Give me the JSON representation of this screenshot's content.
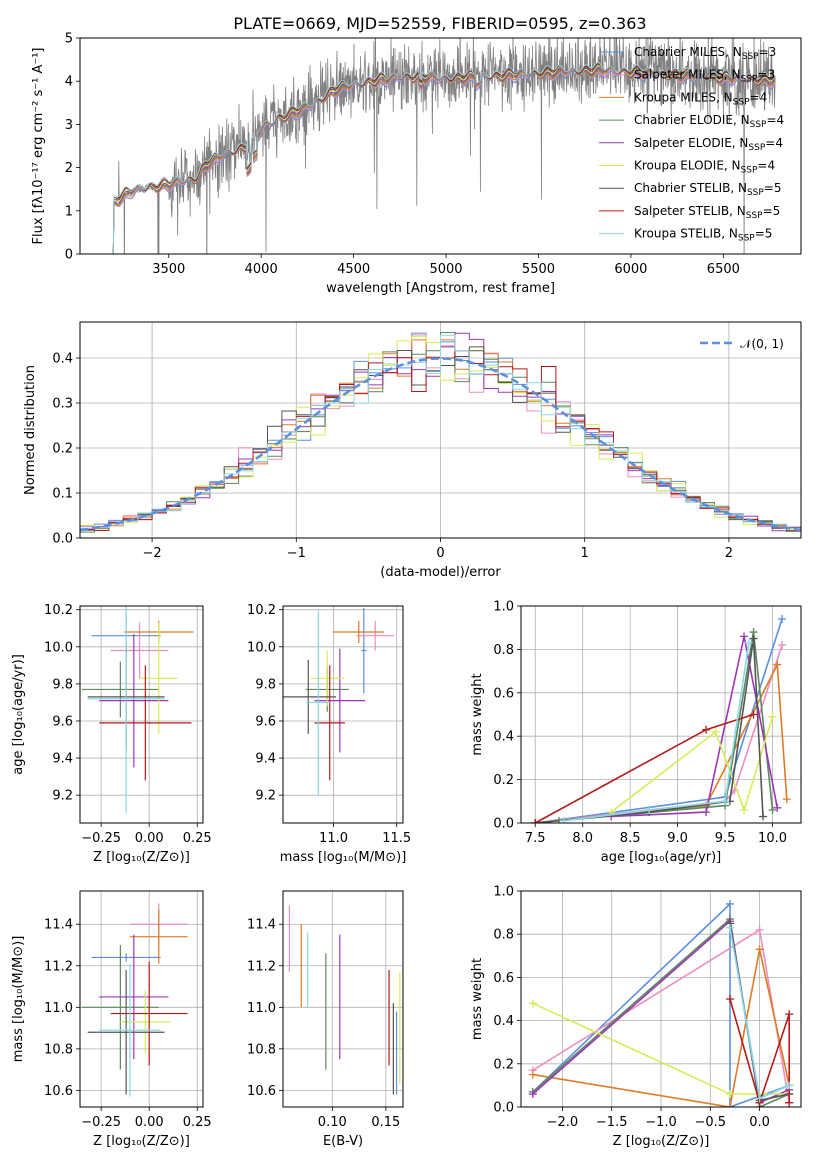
{
  "figure": {
    "title": "PLATE=0669, MJD=52559, FIBERID=0595, z=0.363"
  },
  "models": [
    {
      "name": "Chabrier MILES, N_SSP=3",
      "base": "Chabrier MILES, N",
      "sub": "SSP",
      "tail": "=3",
      "color": "#5B8FE0"
    },
    {
      "name": "Salpeter MILES, N_SSP=3",
      "base": "Salpeter MILES, N",
      "sub": "SSP",
      "tail": "=3",
      "color": "#EE8DC0"
    },
    {
      "name": "Kroupa MILES, N_SSP=4",
      "base": "Kroupa MILES, N",
      "sub": "SSP",
      "tail": "=4",
      "color": "#E07B26"
    },
    {
      "name": "Chabrier ELODIE, N_SSP=4",
      "base": "Chabrier ELODIE, N",
      "sub": "SSP",
      "tail": "=4",
      "color": "#5A8A5A"
    },
    {
      "name": "Salpeter ELODIE, N_SSP=4",
      "base": "Salpeter ELODIE, N",
      "sub": "SSP",
      "tail": "=4",
      "color": "#9B38B8"
    },
    {
      "name": "Kroupa ELODIE, N_SSP=4",
      "base": "Kroupa ELODIE, N",
      "sub": "SSP",
      "tail": "=4",
      "color": "#D8EB56"
    },
    {
      "name": "Chabrier STELIB, N_SSP=5",
      "base": "Chabrier STELIB, N",
      "sub": "SSP",
      "tail": "=5",
      "color": "#555555"
    },
    {
      "name": "Salpeter STELIB, N_SSP=5",
      "base": "Salpeter STELIB, N",
      "sub": "SSP",
      "tail": "=5",
      "color": "#B31B1B"
    },
    {
      "name": "Kroupa STELIB, N_SSP=5",
      "base": "Kroupa STELIB, N",
      "sub": "SSP",
      "tail": "=5",
      "color": "#8AD8E6"
    }
  ],
  "chart_data": [
    {
      "id": "spectrum",
      "type": "line",
      "xlabel": "wavelength [Angstrom, rest frame]",
      "ylabel": "Flux [fλ10⁻¹⁷ erg cm⁻² s⁻¹ A⁻¹]",
      "xlim": [
        3020,
        6920
      ],
      "ylim": [
        0,
        5
      ],
      "xticks": [
        3500,
        4000,
        4500,
        5000,
        5500,
        6000,
        6500
      ],
      "yticks": [
        0,
        1,
        2,
        3,
        4,
        5
      ],
      "data_color": "#808080",
      "x_range": [
        3200,
        6780
      ],
      "continuum": [
        [
          3200,
          1.2
        ],
        [
          3300,
          1.45
        ],
        [
          3400,
          1.55
        ],
        [
          3500,
          1.6
        ],
        [
          3650,
          1.75
        ],
        [
          3700,
          2.05
        ],
        [
          3800,
          2.3
        ],
        [
          3900,
          2.45
        ],
        [
          3950,
          2.5
        ],
        [
          4000,
          2.9
        ],
        [
          4100,
          3.15
        ],
        [
          4200,
          3.3
        ],
        [
          4300,
          3.5
        ],
        [
          4400,
          3.8
        ],
        [
          4500,
          3.9
        ],
        [
          4600,
          4.0
        ],
        [
          4800,
          4.1
        ],
        [
          5000,
          4.05
        ],
        [
          5200,
          4.1
        ],
        [
          5400,
          4.15
        ],
        [
          5600,
          4.2
        ],
        [
          5800,
          4.25
        ],
        [
          6000,
          4.2
        ],
        [
          6200,
          4.15
        ],
        [
          6400,
          4.1
        ],
        [
          6600,
          4.05
        ],
        [
          6780,
          4.0
        ]
      ]
    },
    {
      "id": "residuals",
      "type": "step",
      "xlabel": "(data-model)/error",
      "ylabel": "Normed distribution",
      "xlim": [
        -2.5,
        2.5
      ],
      "ylim": [
        0,
        0.48
      ],
      "xticks": [
        -2,
        -1,
        0,
        1,
        2
      ],
      "yticks": [
        0.0,
        0.1,
        0.2,
        0.3,
        0.4
      ],
      "bin_width": 0.1,
      "reference": {
        "label": "𝒩(0, 1)",
        "color": "#5B8FE0",
        "mean": 0,
        "sigma": 1
      }
    },
    {
      "id": "age-vs-Z",
      "type": "scatter",
      "xlabel": "Z [log₁₀(Z/Z⊙)]",
      "ylabel": "age  [log₁₀(age/yr)]",
      "xlim": [
        -0.36,
        0.28
      ],
      "ylim": [
        9.05,
        10.22
      ],
      "xticks": [
        -0.25,
        0.0,
        0.25
      ],
      "yticks": [
        9.2,
        9.4,
        9.6,
        9.8,
        10.0,
        10.2
      ],
      "points": [
        {
          "x": -0.12,
          "xerr": 0.18,
          "y": 10.06,
          "yerr": 0.12
        },
        {
          "x": -0.05,
          "xerr": 0.15,
          "y": 9.98,
          "yerr": 0.15
        },
        {
          "x": 0.05,
          "xerr": 0.18,
          "y": 10.08,
          "yerr": 0.06
        },
        {
          "x": -0.15,
          "xerr": 0.2,
          "y": 9.77,
          "yerr": 0.15
        },
        {
          "x": -0.08,
          "xerr": 0.18,
          "y": 9.71,
          "yerr": 0.36
        },
        {
          "x": 0.05,
          "xerr": 0.1,
          "y": 9.83,
          "yerr": 0.3
        },
        {
          "x": -0.12,
          "xerr": 0.2,
          "y": 9.73,
          "yerr": 0.28
        },
        {
          "x": -0.02,
          "xerr": 0.24,
          "y": 9.59,
          "yerr": 0.31
        },
        {
          "x": -0.12,
          "xerr": 0.2,
          "y": 9.72,
          "yerr": 0.62
        }
      ]
    },
    {
      "id": "age-vs-mass",
      "type": "scatter",
      "xlabel": "mass [log₁₀(M/M⊙)]",
      "ylabel": "",
      "xlim": [
        10.6,
        11.55
      ],
      "ylim": [
        9.05,
        10.22
      ],
      "xticks": [
        11.0,
        11.5
      ],
      "yticks": [
        9.2,
        9.4,
        9.6,
        9.8,
        10.0,
        10.2
      ],
      "points": [
        {
          "x": 11.24,
          "xerr": 0.02,
          "y": 9.98,
          "yerr": 0.23
        },
        {
          "x": 11.33,
          "xerr": 0.15,
          "y": 10.06,
          "yerr": 0.08
        },
        {
          "x": 11.2,
          "xerr": 0.2,
          "y": 10.08,
          "yerr": 0.06
        },
        {
          "x": 10.95,
          "xerr": 0.17,
          "y": 9.77,
          "yerr": 0.12
        },
        {
          "x": 11.05,
          "xerr": 0.2,
          "y": 9.71,
          "yerr": 0.28
        },
        {
          "x": 10.95,
          "xerr": 0.13,
          "y": 9.83,
          "yerr": 0.15
        },
        {
          "x": 10.8,
          "xerr": 0.22,
          "y": 9.73,
          "yerr": 0.2
        },
        {
          "x": 10.97,
          "xerr": 0.12,
          "y": 9.59,
          "yerr": 0.31
        },
        {
          "x": 10.88,
          "xerr": 0.1,
          "y": 9.7,
          "yerr": 0.5
        }
      ]
    },
    {
      "id": "weight-vs-age",
      "type": "line",
      "xlabel": "age  [log₁₀(age/yr)]",
      "ylabel": "mass weight",
      "xlim": [
        7.35,
        10.3
      ],
      "ylim": [
        0,
        1
      ],
      "xticks": [
        7.5,
        8.0,
        8.5,
        9.0,
        9.5,
        10.0
      ],
      "yticks": [
        0.0,
        0.2,
        0.4,
        0.6,
        0.8,
        1.0
      ],
      "series": [
        {
          "x": [
            7.5,
            9.5,
            10.1
          ],
          "y": [
            0.0,
            0.12,
            0.94
          ]
        },
        {
          "x": [
            7.5,
            9.5,
            9.6,
            10.1
          ],
          "y": [
            0.0,
            0.1,
            0.15,
            0.82
          ]
        },
        {
          "x": [
            7.5,
            9.3,
            10.05,
            10.15
          ],
          "y": [
            0.0,
            0.08,
            0.73,
            0.11
          ]
        },
        {
          "x": [
            7.75,
            9.5,
            9.8,
            10.0
          ],
          "y": [
            0.01,
            0.08,
            0.88,
            0.06
          ]
        },
        {
          "x": [
            8.3,
            9.3,
            9.7,
            10.05
          ],
          "y": [
            0.03,
            0.05,
            0.86,
            0.07
          ]
        },
        {
          "x": [
            8.3,
            9.4,
            9.7,
            10.0
          ],
          "y": [
            0.05,
            0.42,
            0.06,
            0.49
          ]
        },
        {
          "x": [
            7.5,
            8.7,
            9.55,
            9.8,
            9.9
          ],
          "y": [
            0.0,
            0.05,
            0.1,
            0.85,
            0.03
          ]
        },
        {
          "x": [
            7.5,
            9.3,
            9.8
          ],
          "y": [
            0.0,
            0.43,
            0.5
          ]
        },
        {
          "x": [
            7.8,
            8.7,
            9.5,
            9.75
          ],
          "y": [
            0.01,
            0.06,
            0.1,
            0.83
          ]
        }
      ]
    },
    {
      "id": "mass-vs-Z",
      "type": "scatter",
      "xlabel": "Z [log₁₀(Z/Z⊙)]",
      "ylabel": "mass [log₁₀(M/M⊙)]",
      "xlim": [
        -0.36,
        0.28
      ],
      "ylim": [
        10.52,
        11.56
      ],
      "xticks": [
        -0.25,
        0.0,
        0.25
      ],
      "yticks": [
        10.6,
        10.8,
        11.0,
        11.2,
        11.4
      ],
      "points": [
        {
          "x": -0.12,
          "xerr": 0.18,
          "y": 11.24,
          "yerr": 0.02
        },
        {
          "x": 0.05,
          "xerr": 0.15,
          "y": 11.4,
          "yerr": 0.1
        },
        {
          "x": 0.05,
          "xerr": 0.15,
          "y": 11.34,
          "yerr": 0.13
        },
        {
          "x": -0.15,
          "xerr": 0.2,
          "y": 11.0,
          "yerr": 0.3
        },
        {
          "x": -0.08,
          "xerr": 0.18,
          "y": 11.05,
          "yerr": 0.3
        },
        {
          "x": -0.02,
          "xerr": 0.13,
          "y": 10.93,
          "yerr": 0.15
        },
        {
          "x": -0.12,
          "xerr": 0.2,
          "y": 10.88,
          "yerr": 0.3
        },
        {
          "x": 0.0,
          "xerr": 0.2,
          "y": 10.97,
          "yerr": 0.25
        },
        {
          "x": -0.1,
          "xerr": 0.16,
          "y": 10.89,
          "yerr": 0.32
        }
      ]
    },
    {
      "id": "mass-vs-EBV",
      "type": "errorbar",
      "xlabel": "E(B-V)",
      "ylabel": "",
      "xlim": [
        0.054,
        0.166
      ],
      "ylim": [
        10.52,
        11.56
      ],
      "xticks": [
        0.1,
        0.15
      ],
      "yticks": [
        10.6,
        10.8,
        11.0,
        11.2,
        11.4
      ],
      "points": [
        {
          "x": 0.16,
          "xerr": 0,
          "y": 10.78,
          "yerr": 0.2
        },
        {
          "x": 0.06,
          "xerr": 0,
          "y": 11.33,
          "yerr": 0.16
        },
        {
          "x": 0.071,
          "xerr": 0,
          "y": 11.2,
          "yerr": 0.2
        },
        {
          "x": 0.094,
          "xerr": 0,
          "y": 10.98,
          "yerr": 0.28
        },
        {
          "x": 0.107,
          "xerr": 0,
          "y": 11.05,
          "yerr": 0.3
        },
        {
          "x": 0.163,
          "xerr": 0,
          "y": 10.9,
          "yerr": 0.27
        },
        {
          "x": 0.157,
          "xerr": 0,
          "y": 10.8,
          "yerr": 0.22
        },
        {
          "x": 0.153,
          "xerr": 0,
          "y": 10.95,
          "yerr": 0.23
        },
        {
          "x": 0.077,
          "xerr": 0,
          "y": 11.18,
          "yerr": 0.18
        }
      ]
    },
    {
      "id": "weight-vs-Z",
      "type": "line",
      "xlabel": "Z [log₁₀(Z/Z⊙)]",
      "ylabel": "mass weight",
      "xlim": [
        -2.42,
        0.42
      ],
      "ylim": [
        0,
        1
      ],
      "xticks": [
        -2.0,
        -1.5,
        -1.0,
        -0.5,
        0.0
      ],
      "yticks": [
        0.0,
        0.2,
        0.4,
        0.6,
        0.8,
        1.0
      ],
      "series": [
        {
          "x": [
            -2.3,
            -0.3,
            -0.3,
            0.3
          ],
          "y": [
            0.07,
            0.94,
            0.0,
            0.1
          ]
        },
        {
          "x": [
            -2.3,
            -0.0,
            0.3
          ],
          "y": [
            0.17,
            0.82,
            0.02
          ]
        },
        {
          "x": [
            -2.3,
            -0.3,
            0.0,
            0.3
          ],
          "y": [
            0.15,
            0.0,
            0.73,
            0.1
          ]
        },
        {
          "x": [
            -2.3,
            -0.3,
            0.0,
            0.3
          ],
          "y": [
            0.07,
            0.87,
            0.0,
            0.06
          ]
        },
        {
          "x": [
            -2.3,
            -0.3,
            0.0,
            0.3
          ],
          "y": [
            0.06,
            0.86,
            0.02,
            0.08
          ]
        },
        {
          "x": [
            -2.3,
            -0.3,
            0.3
          ],
          "y": [
            0.48,
            0.06,
            0.06
          ]
        },
        {
          "x": [
            -0.3,
            0.0,
            0.3
          ],
          "y": [
            0.85,
            0.03,
            0.06
          ]
        },
        {
          "x": [
            -0.3,
            0.0,
            0.3,
            0.3
          ],
          "y": [
            0.5,
            0.02,
            0.43,
            0.02
          ]
        },
        {
          "x": [
            -0.3,
            0.0,
            0.3
          ],
          "y": [
            0.83,
            0.04,
            0.1
          ]
        }
      ]
    }
  ]
}
